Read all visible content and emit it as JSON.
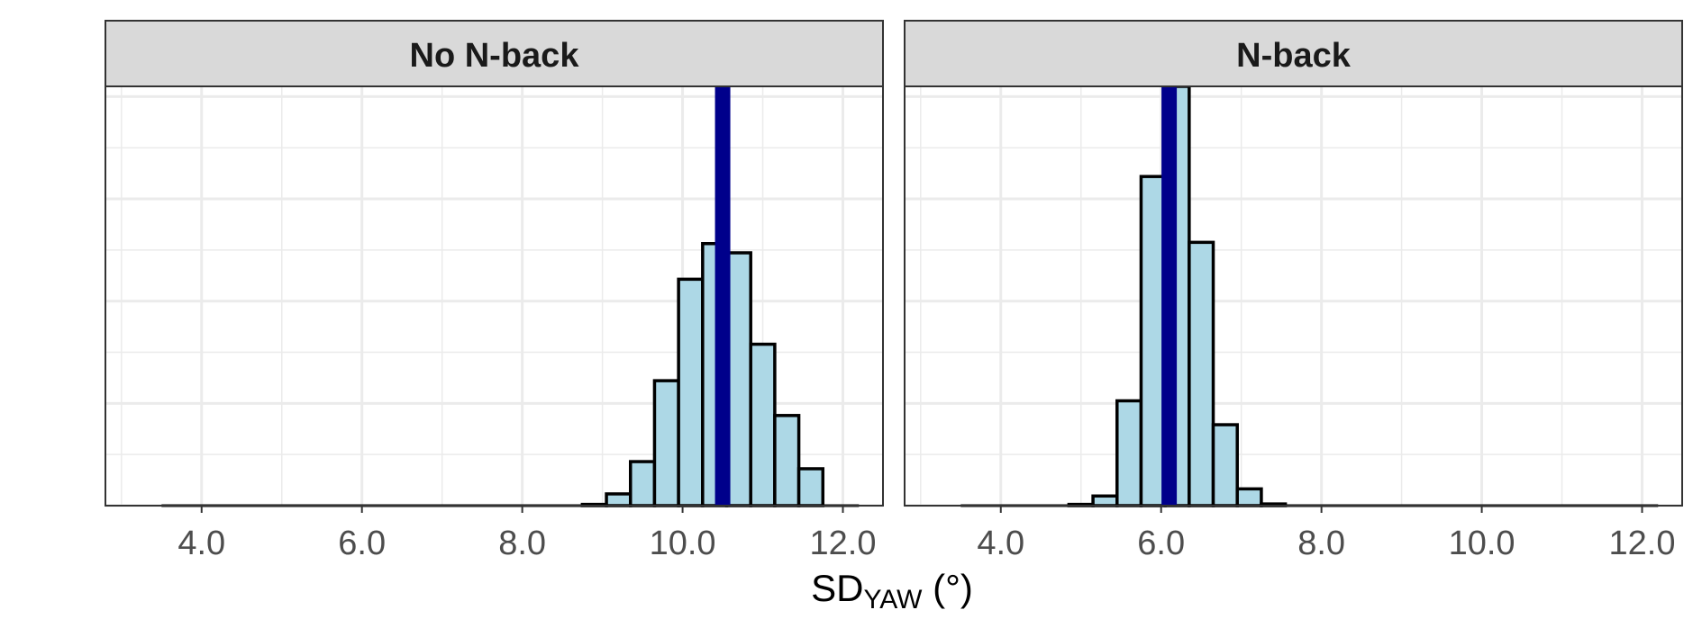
{
  "chart_data": {
    "type": "histogram",
    "xlabel": {
      "main": "SD",
      "subscript": "YAW",
      "unit": " (°)"
    },
    "xlim": [
      2.8,
      12.5
    ],
    "xticks": [
      4.0,
      6.0,
      8.0,
      10.0,
      12.0
    ],
    "xtick_labels": [
      "4.0",
      "6.0",
      "8.0",
      "10.0",
      "12.0"
    ],
    "y_axis_shown": false,
    "grid": true,
    "bar_fill": "#add8e6",
    "bar_outline": "#000000",
    "marker_color": "#00008b",
    "panel_strip_fill": "#d9d9d9",
    "panels": [
      {
        "label": "No N-back",
        "ylim": [
          0,
          1.0
        ],
        "bin_width": 0.3,
        "bins": [
          {
            "x": 8.9,
            "count": 0.003
          },
          {
            "x": 9.2,
            "count": 0.028
          },
          {
            "x": 9.5,
            "count": 0.105
          },
          {
            "x": 9.8,
            "count": 0.298
          },
          {
            "x": 10.1,
            "count": 0.54
          },
          {
            "x": 10.4,
            "count": 0.625
          },
          {
            "x": 10.7,
            "count": 0.603
          },
          {
            "x": 11.0,
            "count": 0.385
          },
          {
            "x": 11.3,
            "count": 0.215
          },
          {
            "x": 11.6,
            "count": 0.088
          }
        ],
        "marker": 10.5
      },
      {
        "label": "N-back",
        "ylim": [
          0,
          1.0
        ],
        "bin_width": 0.3,
        "bins": [
          {
            "x": 5.0,
            "count": 0.003
          },
          {
            "x": 5.3,
            "count": 0.023
          },
          {
            "x": 5.6,
            "count": 0.25
          },
          {
            "x": 5.9,
            "count": 0.785
          },
          {
            "x": 6.2,
            "count": 1.0
          },
          {
            "x": 6.5,
            "count": 0.628
          },
          {
            "x": 6.8,
            "count": 0.193
          },
          {
            "x": 7.1,
            "count": 0.04
          },
          {
            "x": 7.4,
            "count": 0.004
          }
        ],
        "marker": 6.1
      }
    ]
  }
}
